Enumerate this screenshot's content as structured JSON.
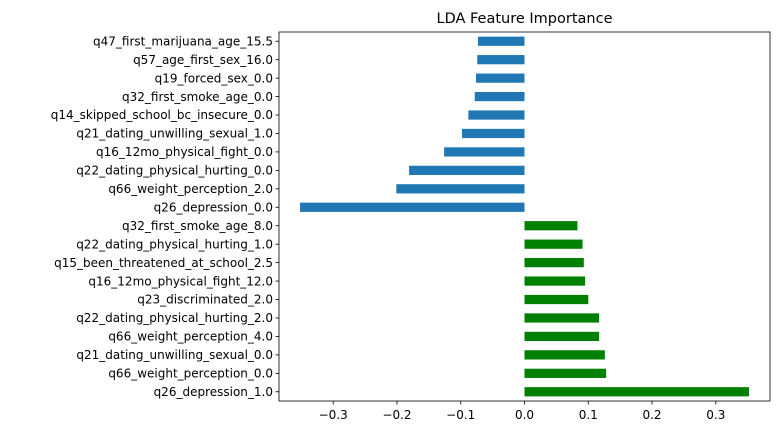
{
  "chart_data": {
    "type": "bar",
    "orientation": "horizontal",
    "title": "LDA Feature Importance",
    "xlabel": "",
    "ylabel": "",
    "xlim": [
      -0.385,
      0.385
    ],
    "xticks": [
      -0.3,
      -0.2,
      -0.1,
      0.0,
      0.1,
      0.2,
      0.3
    ],
    "xtick_labels": [
      "−0.3",
      "−0.2",
      "−0.1",
      "0.0",
      "0.1",
      "0.2",
      "0.3"
    ],
    "grid": false,
    "colors": {
      "negative": "#1f77b4",
      "positive": "#008000"
    },
    "categories": [
      "q26_depression_1.0",
      "q66_weight_perception_0.0",
      "q21_dating_unwilling_sexual_0.0",
      "q66_weight_perception_4.0",
      "q22_dating_physical_hurting_2.0",
      "q23_discriminated_2.0",
      "q16_12mo_physical_fight_12.0",
      "q15_been_threatened_at_school_2.5",
      "q22_dating_physical_hurting_1.0",
      "q32_first_smoke_age_8.0",
      "q26_depression_0.0",
      "q66_weight_perception_2.0",
      "q22_dating_physical_hurting_0.0",
      "q16_12mo_physical_fight_0.0",
      "q21_dating_unwilling_sexual_1.0",
      "q14_skipped_school_bc_insecure_0.0",
      "q32_first_smoke_age_0.0",
      "q19_forced_sex_0.0",
      "q57_age_first_sex_16.0",
      "q47_first_marijuana_age_15.5"
    ],
    "values": [
      0.352,
      0.128,
      0.126,
      0.117,
      0.117,
      0.1,
      0.095,
      0.093,
      0.091,
      0.083,
      -0.352,
      -0.201,
      -0.181,
      -0.126,
      -0.098,
      -0.088,
      -0.078,
      -0.076,
      -0.074,
      -0.073
    ]
  }
}
